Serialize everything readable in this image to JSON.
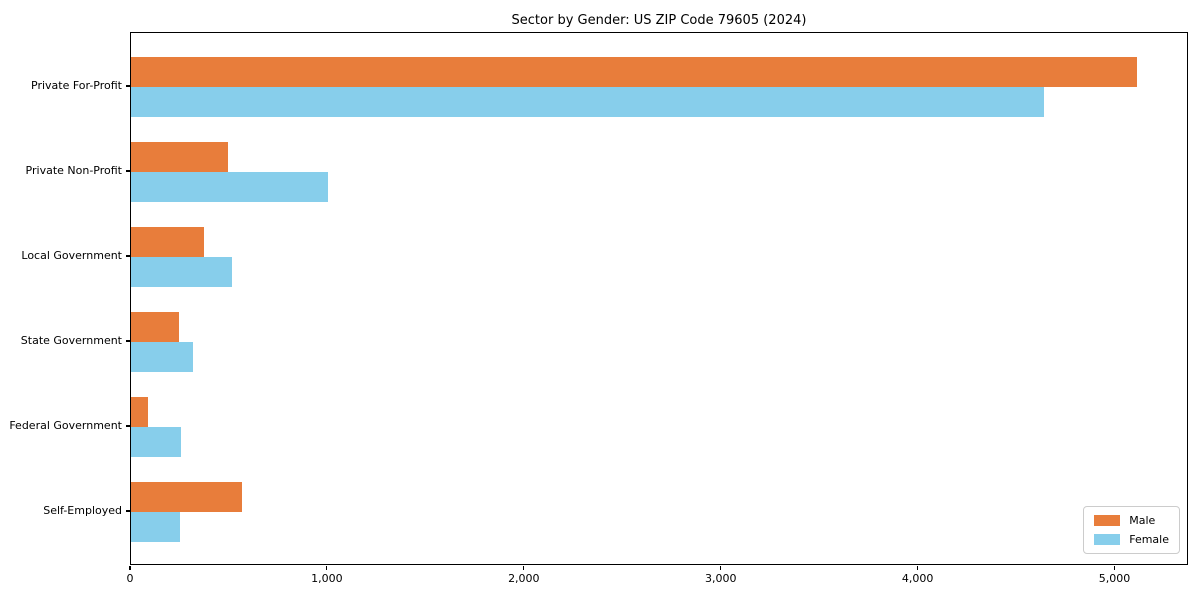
{
  "chart_data": {
    "type": "bar",
    "orientation": "horizontal",
    "title": "Sector by Gender: US ZIP Code 79605 (2024)",
    "xlabel": "",
    "ylabel": "",
    "grid": false,
    "legend_position": "lower right",
    "categories": [
      "Private For-Profit",
      "Private Non-Profit",
      "Local Government",
      "State Government",
      "Federal Government",
      "Self-Employed"
    ],
    "series": [
      {
        "name": "Male",
        "color": "#e87d3b",
        "values": [
          5117,
          494,
          371,
          244,
          87,
          565
        ]
      },
      {
        "name": "Female",
        "color": "#87ceeb",
        "values": [
          4644,
          1003,
          514,
          316,
          254,
          249
        ]
      }
    ],
    "xlim": [
      0,
      5373
    ],
    "x_ticks": [
      {
        "value": 0,
        "label": "0"
      },
      {
        "value": 1000,
        "label": "1,000"
      },
      {
        "value": 2000,
        "label": "2,000"
      },
      {
        "value": 3000,
        "label": "3,000"
      },
      {
        "value": 4000,
        "label": "4,000"
      },
      {
        "value": 5000,
        "label": "5,000"
      }
    ]
  }
}
